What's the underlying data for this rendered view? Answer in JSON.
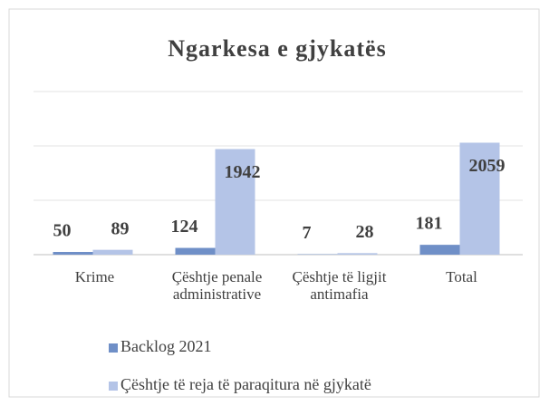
{
  "chart_data": {
    "type": "bar",
    "title": "Ngarkesa e gjykatës",
    "categories": [
      "Krime",
      "Çështje penale administrative",
      "Çështje të ligjit antimafia",
      "Total"
    ],
    "series": [
      {
        "name": "Backlog 2021",
        "color": "#6f8fc7",
        "values": [
          50,
          124,
          7,
          181
        ]
      },
      {
        "name": "Çështje të reja të paraqitura në gjykatë",
        "color": "#b4c4e7",
        "values": [
          89,
          1942,
          28,
          2059
        ]
      }
    ],
    "ylim": [
      0,
      3000
    ],
    "yticks": [
      0,
      1000,
      2000,
      3000
    ],
    "grid": true,
    "legend": "bottom"
  }
}
